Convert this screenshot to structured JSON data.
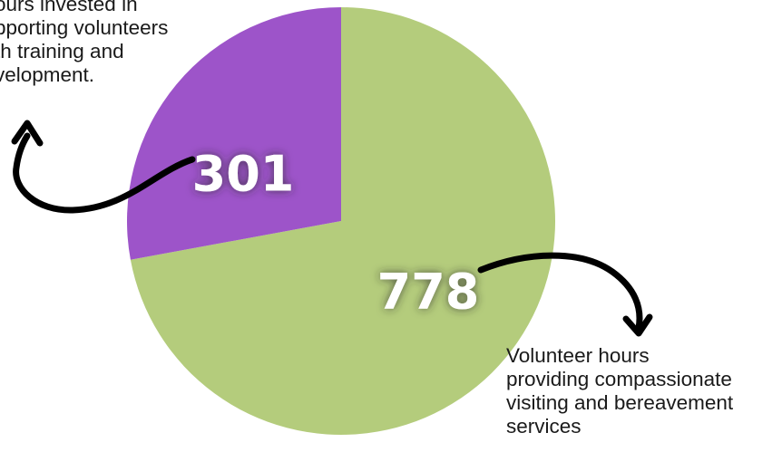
{
  "chart_data": {
    "type": "pie",
    "slices": [
      {
        "value": 778,
        "label": "778",
        "color": "#b4cc7c",
        "annotation": "Volunteer hours\nproviding compassionate\nvisiting and bereavement\nservices"
      },
      {
        "value": 301,
        "label": "301",
        "color": "#9d54c9",
        "annotation": "ours invested in\npporting volunteers\nth training and\nvelopment."
      }
    ],
    "start_angle_deg": 0,
    "direction": "clockwise",
    "legend": "none"
  }
}
